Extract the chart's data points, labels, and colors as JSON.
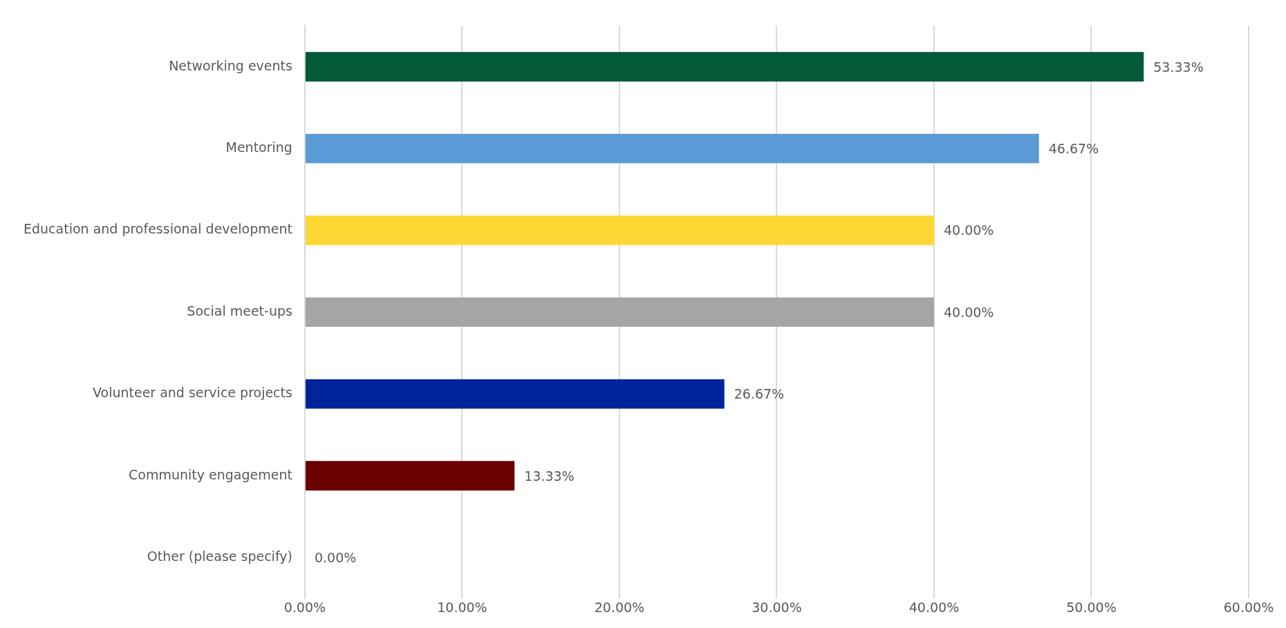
{
  "chart_data": {
    "type": "bar",
    "orientation": "horizontal",
    "categories": [
      "Networking events",
      "Mentoring",
      "Education and professional development",
      "Social meet-ups",
      "Volunteer and service projects",
      "Community engagement",
      "Other (please specify)"
    ],
    "values": [
      53.33,
      46.67,
      40.0,
      40.0,
      26.67,
      13.33,
      0.0
    ],
    "colors": [
      "#035a37",
      "#5b9bd5",
      "#fdd835",
      "#a5a5a5",
      "#00259a",
      "#6a0000",
      "#808080"
    ],
    "value_labels": [
      "53.33%",
      "46.67%",
      "40.00%",
      "40.00%",
      "26.67%",
      "13.33%",
      "0.00%"
    ],
    "xlim": [
      0,
      60
    ],
    "xticks": [
      {
        "value": 0,
        "label": "0.00%"
      },
      {
        "value": 10,
        "label": "10.00%"
      },
      {
        "value": 20,
        "label": "20.00%"
      },
      {
        "value": 30,
        "label": "30.00%"
      },
      {
        "value": 40,
        "label": "40.00%"
      },
      {
        "value": 50,
        "label": "50.00%"
      },
      {
        "value": 60,
        "label": "60.00%"
      }
    ],
    "grid": "x",
    "legend": false
  }
}
